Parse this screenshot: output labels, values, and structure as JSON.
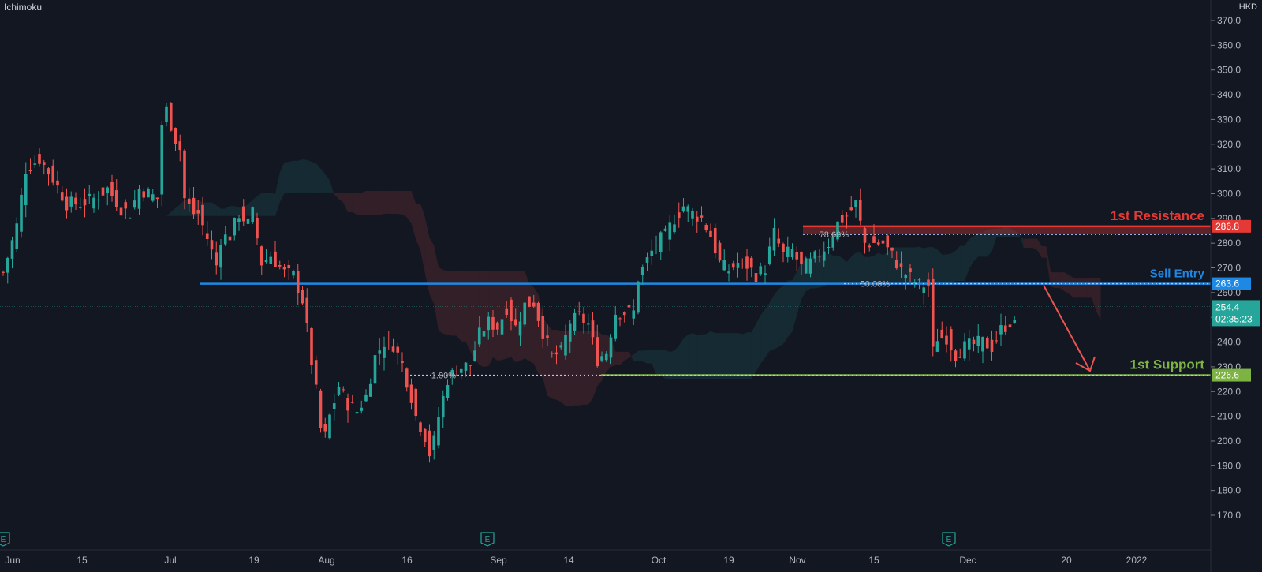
{
  "indicator": "Ichimoku",
  "currency": "HKD",
  "chart_data": {
    "type": "candlestick",
    "y_axis": {
      "ticks": [
        "370.0",
        "360.0",
        "350.0",
        "340.0",
        "330.0",
        "320.0",
        "310.0",
        "300.0",
        "290.0",
        "280.0",
        "270.0",
        "260.0",
        "250.0",
        "240.0",
        "230.0",
        "220.0",
        "210.0",
        "200.0",
        "190.0",
        "180.0",
        "170.0"
      ],
      "range": [
        163,
        373
      ]
    },
    "x_axis": {
      "ticks": [
        "Jun",
        "15",
        "Jul",
        "19",
        "Aug",
        "16",
        "Sep",
        "14",
        "Oct",
        "19",
        "Nov",
        "15",
        "Dec",
        "20",
        "2022"
      ]
    },
    "earnings_marker": "E",
    "levels": [
      {
        "label": "1st Resistance",
        "price_label": "286.8",
        "value": 286.8,
        "color": "#e53935"
      },
      {
        "label": "Sell Entry",
        "price_label": "263.6",
        "value": 263.6,
        "color": "#1e88e5"
      },
      {
        "label": "1st Support",
        "price_label": "226.6",
        "value": 226.6,
        "color": "#7cb342"
      }
    ],
    "fib_levels": [
      {
        "label": "78.60%",
        "value": 283.5
      },
      {
        "label": "50.00%",
        "value": 263.6
      },
      {
        "label": "1.80%",
        "value": 226.6
      }
    ],
    "last_price": {
      "value": "254.4",
      "countdown": "02:35:23",
      "color": "#26a69a"
    },
    "close_path": [
      [
        0,
        268
      ],
      [
        3,
        287
      ],
      [
        5,
        310
      ],
      [
        8,
        314
      ],
      [
        11,
        306
      ],
      [
        14,
        296
      ],
      [
        17,
        296
      ],
      [
        20,
        298
      ],
      [
        23,
        302
      ],
      [
        26,
        294
      ],
      [
        28,
        292
      ],
      [
        30,
        302
      ],
      [
        32,
        300
      ],
      [
        34,
        298
      ],
      [
        35,
        328
      ],
      [
        36,
        334
      ],
      [
        37,
        328
      ],
      [
        38,
        322
      ],
      [
        39,
        318
      ],
      [
        40,
        298
      ],
      [
        42,
        292
      ],
      [
        43,
        292
      ],
      [
        45,
        282
      ],
      [
        47,
        271
      ],
      [
        48,
        282
      ],
      [
        50,
        283
      ],
      [
        52,
        292
      ],
      [
        54,
        288
      ],
      [
        55,
        292
      ],
      [
        57,
        272
      ],
      [
        59,
        275
      ],
      [
        62,
        268
      ],
      [
        64,
        267
      ],
      [
        66,
        257
      ],
      [
        67,
        245
      ],
      [
        68,
        232
      ],
      [
        69,
        220
      ],
      [
        70,
        205
      ],
      [
        71,
        202
      ],
      [
        72,
        210
      ],
      [
        74,
        222
      ],
      [
        76,
        215
      ],
      [
        78,
        212
      ],
      [
        80,
        218
      ],
      [
        82,
        234
      ],
      [
        84,
        240
      ],
      [
        86,
        239
      ],
      [
        88,
        231
      ],
      [
        90,
        218
      ],
      [
        91,
        210
      ],
      [
        93,
        202
      ],
      [
        94,
        195
      ],
      [
        95,
        200
      ],
      [
        96,
        210
      ],
      [
        98,
        225
      ],
      [
        100,
        229
      ],
      [
        103,
        231
      ],
      [
        105,
        243
      ],
      [
        107,
        248
      ],
      [
        109,
        246
      ],
      [
        111,
        254
      ],
      [
        113,
        246
      ],
      [
        115,
        255
      ],
      [
        117,
        256
      ],
      [
        119,
        244
      ],
      [
        121,
        234
      ],
      [
        123,
        236
      ],
      [
        125,
        248
      ],
      [
        127,
        250
      ],
      [
        129,
        247
      ],
      [
        131,
        233
      ],
      [
        133,
        236
      ],
      [
        135,
        252
      ],
      [
        137,
        252
      ],
      [
        139,
        252
      ],
      [
        140,
        266
      ],
      [
        142,
        273
      ],
      [
        144,
        280
      ],
      [
        146,
        283
      ],
      [
        148,
        290
      ],
      [
        150,
        295
      ],
      [
        152,
        292
      ],
      [
        154,
        290
      ],
      [
        156,
        283
      ],
      [
        158,
        272
      ],
      [
        160,
        269
      ],
      [
        162,
        272
      ],
      [
        164,
        271
      ],
      [
        166,
        267
      ],
      [
        168,
        270
      ],
      [
        170,
        284
      ],
      [
        172,
        275
      ],
      [
        174,
        277
      ],
      [
        176,
        270
      ],
      [
        178,
        272
      ],
      [
        180,
        276
      ],
      [
        182,
        280
      ],
      [
        184,
        288
      ],
      [
        186,
        291
      ],
      [
        188,
        296
      ],
      [
        190,
        280
      ],
      [
        192,
        280
      ],
      [
        194,
        280
      ],
      [
        196,
        275
      ],
      [
        198,
        269
      ],
      [
        200,
        266
      ],
      [
        202,
        263
      ],
      [
        204,
        263
      ],
      [
        205,
        236
      ],
      [
        206,
        242
      ],
      [
        208,
        242
      ],
      [
        210,
        235
      ],
      [
        212,
        238
      ],
      [
        214,
        239
      ],
      [
        216,
        240
      ],
      [
        218,
        238
      ],
      [
        220,
        245
      ],
      [
        222,
        248
      ],
      [
        224,
        245
      ],
      [
        226,
        243
      ],
      [
        227,
        247
      ],
      [
        228,
        254.4
      ]
    ]
  }
}
